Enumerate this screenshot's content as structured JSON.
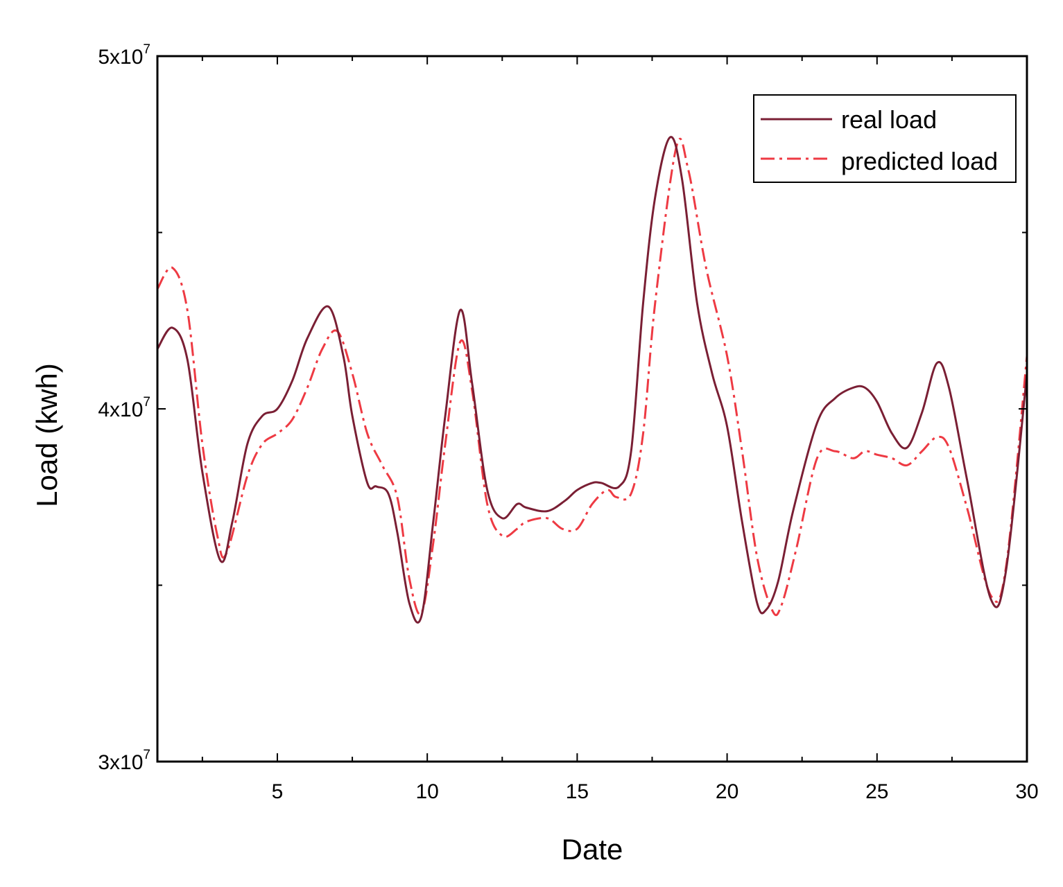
{
  "chart_data": {
    "type": "line",
    "xlabel": "Date",
    "ylabel": "Load (kwh)",
    "xlim": [
      1,
      30
    ],
    "ylim": [
      30000000,
      50000000
    ],
    "x_ticks": [
      5,
      10,
      15,
      20,
      25,
      30
    ],
    "x_tick_labels": [
      "5",
      "10",
      "15",
      "20",
      "25",
      "30"
    ],
    "x_minor_ticks": [
      2.5,
      7.5,
      12.5,
      17.5,
      22.5,
      27.5
    ],
    "y_ticks": [
      30000000,
      40000000,
      50000000
    ],
    "y_tick_labels": [
      {
        "mantissa": "3x10",
        "exp": "7"
      },
      {
        "mantissa": "4x10",
        "exp": "7"
      },
      {
        "mantissa": "5x10",
        "exp": "7"
      }
    ],
    "y_minor_ticks": [
      35000000,
      45000000
    ],
    "legend": {
      "position": "top-right"
    },
    "grid": false,
    "series": [
      {
        "name": "real load",
        "color": "#7a1f34",
        "dash": "solid",
        "x": [
          1,
          1.5,
          2,
          2.5,
          3.1,
          3.5,
          4,
          4.5,
          5,
          5.5,
          6,
          6.7,
          7.2,
          7.5,
          8,
          8.3,
          8.7,
          9,
          9.4,
          9.8,
          10.2,
          10.6,
          11.1,
          11.5,
          12,
          12.5,
          13,
          13.3,
          14,
          14.6,
          15,
          15.5,
          15.8,
          16.4,
          16.8,
          17.2,
          17.6,
          18.1,
          18.5,
          19,
          19.5,
          20,
          20.5,
          21,
          21.3,
          21.7,
          22.2,
          23,
          23.6,
          24.2,
          24.6,
          25,
          25.5,
          26,
          26.5,
          27,
          27.4,
          28,
          28.8,
          29.3,
          30
        ],
        "y": [
          41700000,
          42300000,
          41400000,
          38200000,
          35700000,
          36800000,
          39000000,
          39800000,
          40000000,
          40800000,
          42000000,
          42900000,
          41500000,
          39800000,
          37900000,
          37800000,
          37600000,
          36500000,
          34500000,
          34100000,
          36800000,
          39800000,
          42800000,
          40700000,
          37700000,
          36900000,
          37300000,
          37200000,
          37100000,
          37400000,
          37700000,
          37900000,
          37900000,
          37800000,
          38800000,
          43000000,
          46000000,
          47700000,
          46500000,
          43000000,
          41000000,
          39500000,
          36800000,
          34500000,
          34300000,
          35100000,
          37100000,
          39600000,
          40300000,
          40600000,
          40600000,
          40200000,
          39300000,
          38900000,
          39900000,
          41300000,
          40600000,
          38000000,
          34600000,
          35400000,
          41000000
        ]
      },
      {
        "name": "predicted load",
        "color": "#ee3a43",
        "dash": "dashdot",
        "x": [
          1,
          1.5,
          2,
          2.5,
          3,
          3.3,
          4,
          4.5,
          5,
          5.5,
          6,
          6.5,
          7,
          7.5,
          8,
          8.5,
          9,
          9.4,
          9.8,
          10.2,
          10.6,
          11.1,
          11.5,
          12,
          12.5,
          13,
          13.3,
          14,
          14.5,
          15,
          15.5,
          16,
          16.3,
          16.8,
          17.2,
          17.6,
          18.3,
          18.7,
          19.3,
          20,
          20.5,
          21,
          21.5,
          21.8,
          22.3,
          23,
          23.6,
          24.2,
          24.6,
          25,
          25.5,
          26,
          26.5,
          27,
          27.4,
          28,
          28.8,
          29.3,
          30
        ],
        "y": [
          43400000,
          44000000,
          42800000,
          39000000,
          36400000,
          35900000,
          38100000,
          39000000,
          39300000,
          39700000,
          40600000,
          41700000,
          42200000,
          41000000,
          39300000,
          38400000,
          37500000,
          35200000,
          34200000,
          36200000,
          39000000,
          41900000,
          40500000,
          37300000,
          36400000,
          36600000,
          36800000,
          36900000,
          36600000,
          36600000,
          37300000,
          37700000,
          37500000,
          37600000,
          39300000,
          43000000,
          47400000,
          46800000,
          44000000,
          41500000,
          38800000,
          35800000,
          34300000,
          34400000,
          36000000,
          38600000,
          38800000,
          38600000,
          38800000,
          38700000,
          38600000,
          38400000,
          38800000,
          39200000,
          38900000,
          37200000,
          34700000,
          35500000,
          41500000
        ]
      }
    ]
  }
}
